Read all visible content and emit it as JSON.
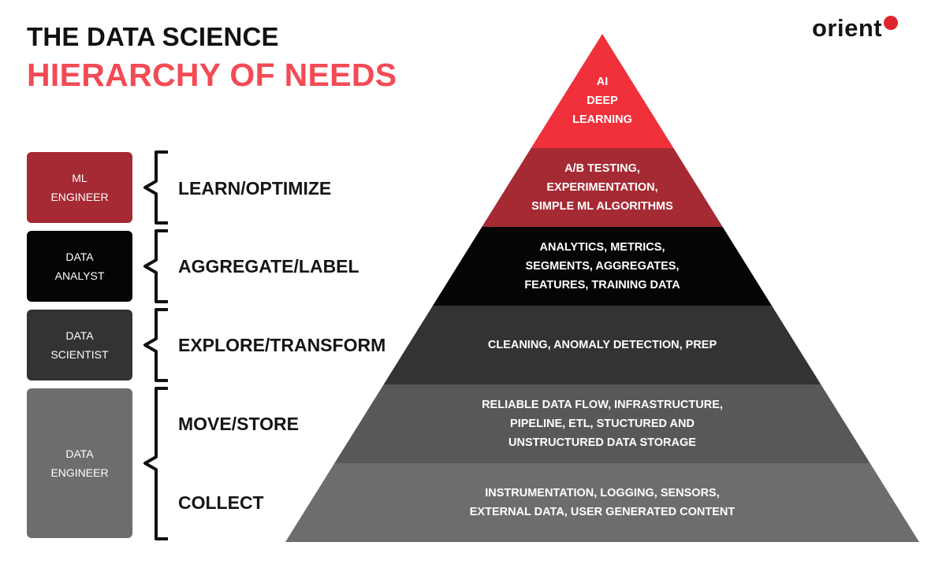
{
  "title": {
    "line1": "THE DATA SCIENCE",
    "line2": "HIERARCHY OF NEEDS"
  },
  "logo": {
    "text": "orient",
    "dot_color": "#e0242d"
  },
  "roles": [
    {
      "label": "ML\nENGINEER",
      "color": "#a52a33"
    },
    {
      "label": "DATA\nANALYST",
      "color": "#050505"
    },
    {
      "label": "DATA\nSCIENTIST",
      "color": "#333333"
    },
    {
      "label": "DATA\nENGINEER",
      "color": "#6d6d70"
    }
  ],
  "stages": [
    {
      "label": "LEARN/OPTIMIZE"
    },
    {
      "label": "AGGREGATE/LABEL"
    },
    {
      "label": "EXPLORE/TRANSFORM"
    },
    {
      "label": "MOVE/STORE"
    },
    {
      "label": "COLLECT"
    }
  ],
  "pyramid_layers": [
    {
      "text": "AI\nDEEP\nLEARNING",
      "color": "#f0303a"
    },
    {
      "text": "A/B TESTING,\nEXPERIMENTATION,\nSIMPLE ML ALGORITHMS",
      "color": "#a52a33"
    },
    {
      "text": "ANALYTICS, METRICS,\nSEGMENTS, AGGREGATES,\nFEATURES, TRAINING DATA",
      "color": "#050505"
    },
    {
      "text": "CLEANING, ANOMALY DETECTION, PREP",
      "color": "#333333"
    },
    {
      "text": "RELIABLE DATA FLOW, INFRASTRUCTURE,\nPIPELINE, ETL, STUCTURED AND\nUNSTRUCTURED DATA STORAGE",
      "color": "#58585b"
    },
    {
      "text": "INSTRUMENTATION, LOGGING, SENSORS,\nEXTERNAL DATA, USER GENERATED CONTENT",
      "color": "#6d6d70"
    }
  ]
}
